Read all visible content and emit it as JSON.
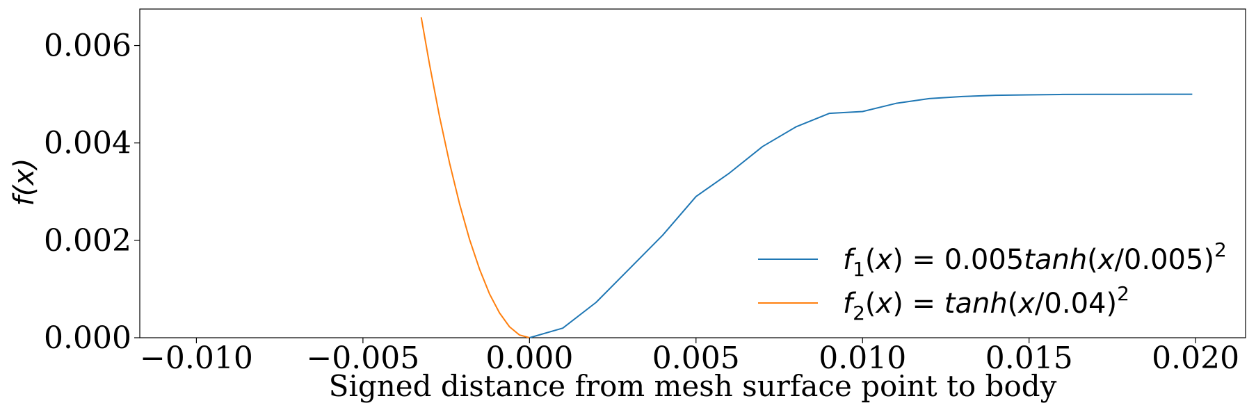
{
  "chart_data": {
    "type": "line",
    "xlabel": "Signed distance from mesh surface point to body",
    "ylabel": "f(x)",
    "xlim": [
      -0.0117,
      0.0215
    ],
    "ylim": [
      0.0,
      0.00675
    ],
    "grid": false,
    "legend_position": "lower-right",
    "x_ticks": [
      -0.01,
      -0.005,
      0.0,
      0.005,
      0.01,
      0.015,
      0.02
    ],
    "x_tick_labels": [
      "−0.010",
      "−0.005",
      "0.000",
      "0.005",
      "0.010",
      "0.015",
      "0.020"
    ],
    "y_ticks": [
      0.0,
      0.002,
      0.004,
      0.006
    ],
    "y_tick_labels": [
      "0.000",
      "0.002",
      "0.004",
      "0.006"
    ],
    "series": [
      {
        "name": "f1(x) = 0.005tanh(x/0.005)^2",
        "legend_parts": {
          "f": "f",
          "sub": "1",
          "arg": "(x)",
          "eq": " = 0.005",
          "fn": "tanh",
          "inner": "(x/0.005)",
          "sup": "2"
        },
        "color": "#1f77b4",
        "x": [
          0.0,
          0.001,
          0.002,
          0.003,
          0.004,
          0.005,
          0.006,
          0.007,
          0.008,
          0.009,
          0.01,
          0.011,
          0.012,
          0.013,
          0.014,
          0.015,
          0.016,
          0.017,
          0.018,
          0.019,
          0.0199
        ],
        "y": [
          0.0,
          0.000197,
          0.000726,
          0.001416,
          0.002106,
          0.0029,
          0.00338,
          0.003927,
          0.00433,
          0.004607,
          0.004645,
          0.004812,
          0.004911,
          0.004953,
          0.004979,
          0.004988,
          0.004996,
          0.004998,
          0.004999,
          0.005,
          0.005
        ]
      },
      {
        "name": "f2(x) = tanh(x/0.04)^2",
        "legend_parts": {
          "f": "f",
          "sub": "2",
          "arg": "(x)",
          "eq": " = ",
          "fn": "tanh",
          "inner": "(x/0.04)",
          "sup": "2"
        },
        "color": "#ff7f0e",
        "x": [
          -0.00325,
          -0.003,
          -0.0027,
          -0.0024,
          -0.0021,
          -0.0018,
          -0.0015,
          -0.0012,
          -0.0009,
          -0.0006,
          -0.0003,
          0.0
        ],
        "y": [
          0.00658,
          0.00561,
          0.00454,
          0.00359,
          0.00275,
          0.00202,
          0.00141,
          0.0009,
          0.00051,
          0.000225,
          5.63e-05,
          0.0
        ]
      }
    ]
  }
}
